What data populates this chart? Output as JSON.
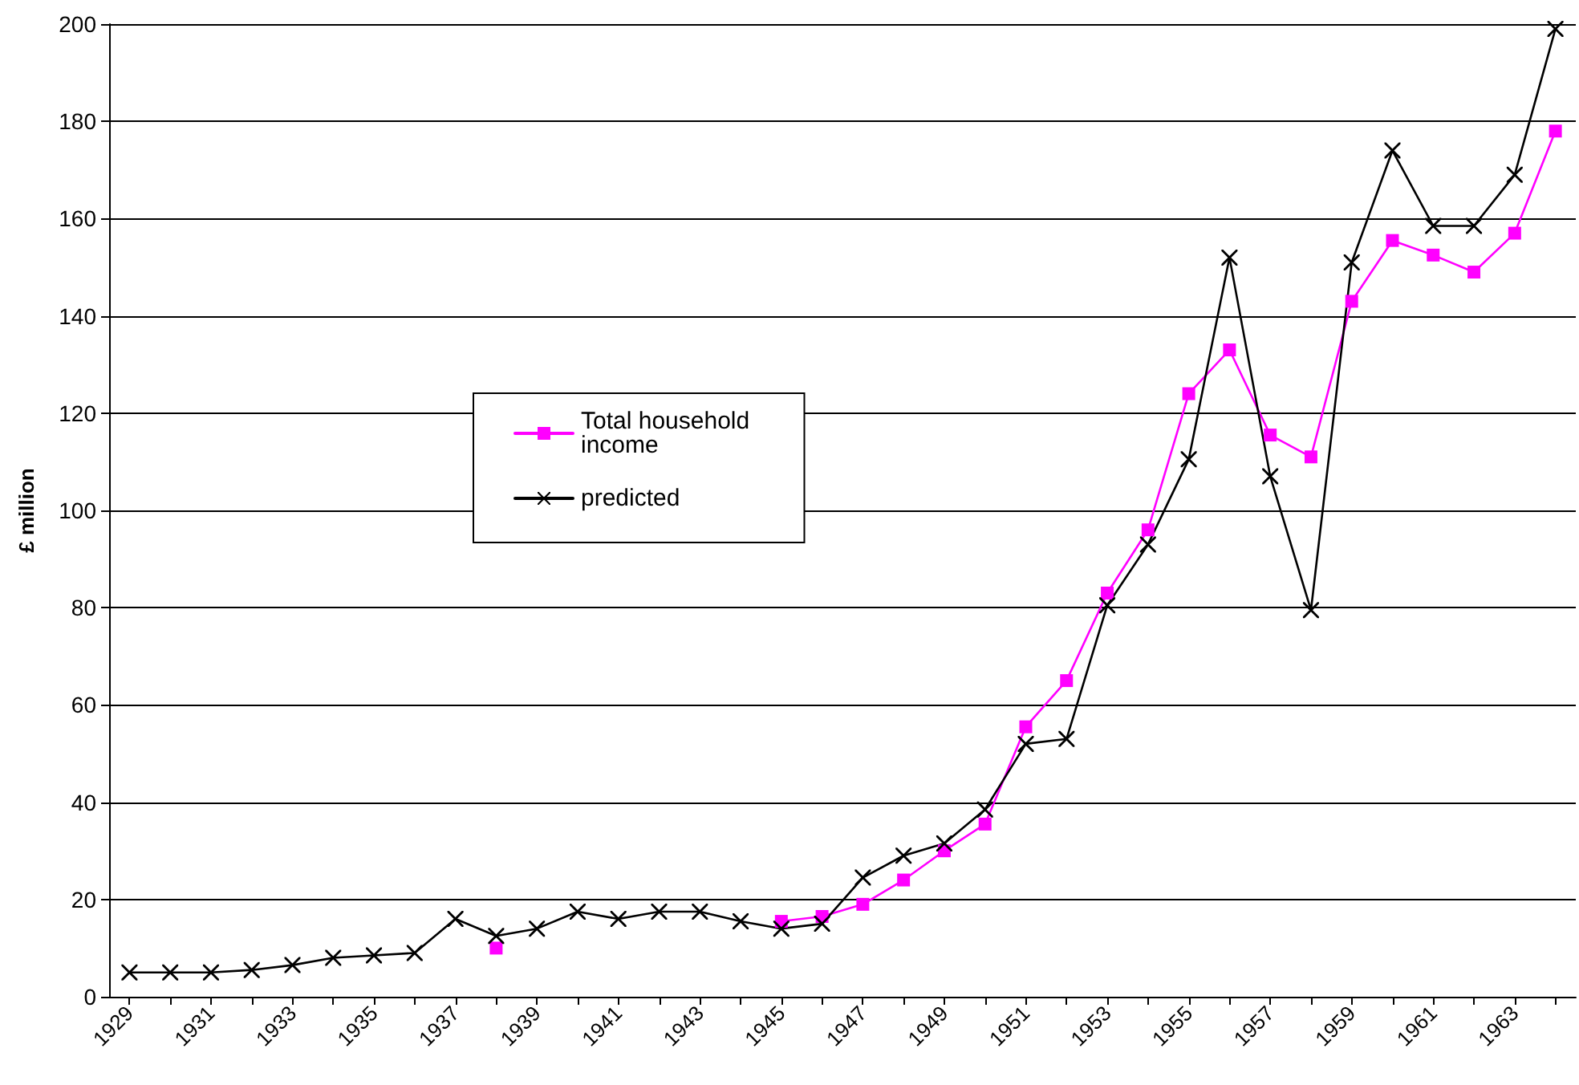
{
  "chart_data": {
    "type": "line",
    "ylabel": "£ million",
    "categories": [
      "1929",
      null,
      "1931",
      null,
      "1933",
      null,
      "1935",
      null,
      "1937",
      null,
      "1939",
      null,
      "1941",
      null,
      "1943",
      null,
      "1945",
      null,
      "1947",
      null,
      "1949",
      null,
      "1951",
      null,
      "1953",
      null,
      "1955",
      null,
      "1957",
      null,
      "1959",
      null,
      "1961",
      null,
      "1963",
      null
    ],
    "series": [
      {
        "name": "Total household income",
        "color": "#ff00ff",
        "marker": "square",
        "values": [
          null,
          null,
          null,
          null,
          null,
          null,
          null,
          null,
          null,
          10,
          null,
          null,
          null,
          null,
          null,
          null,
          15.5,
          16.5,
          19,
          24,
          30,
          35.5,
          55.5,
          65,
          83,
          96,
          124,
          133,
          115.5,
          111,
          143,
          155.5,
          152.5,
          149,
          157,
          178
        ]
      },
      {
        "name": "predicted",
        "color": "#000000",
        "marker": "cross",
        "values": [
          5,
          5,
          5,
          5.5,
          6.5,
          8,
          8.5,
          9,
          16,
          12.5,
          14,
          17.5,
          16,
          17.5,
          17.5,
          15.5,
          14,
          15,
          24.5,
          29,
          31.5,
          38.5,
          52,
          53,
          80.5,
          93,
          110.5,
          152,
          107,
          79.5,
          151,
          174,
          158.5,
          158.5,
          169,
          199
        ]
      }
    ],
    "ylim": [
      0,
      200
    ],
    "yticks": [
      0,
      20,
      40,
      60,
      80,
      100,
      120,
      140,
      160,
      180,
      200
    ],
    "grid": "y",
    "legend": "center",
    "line_style": "solid"
  }
}
